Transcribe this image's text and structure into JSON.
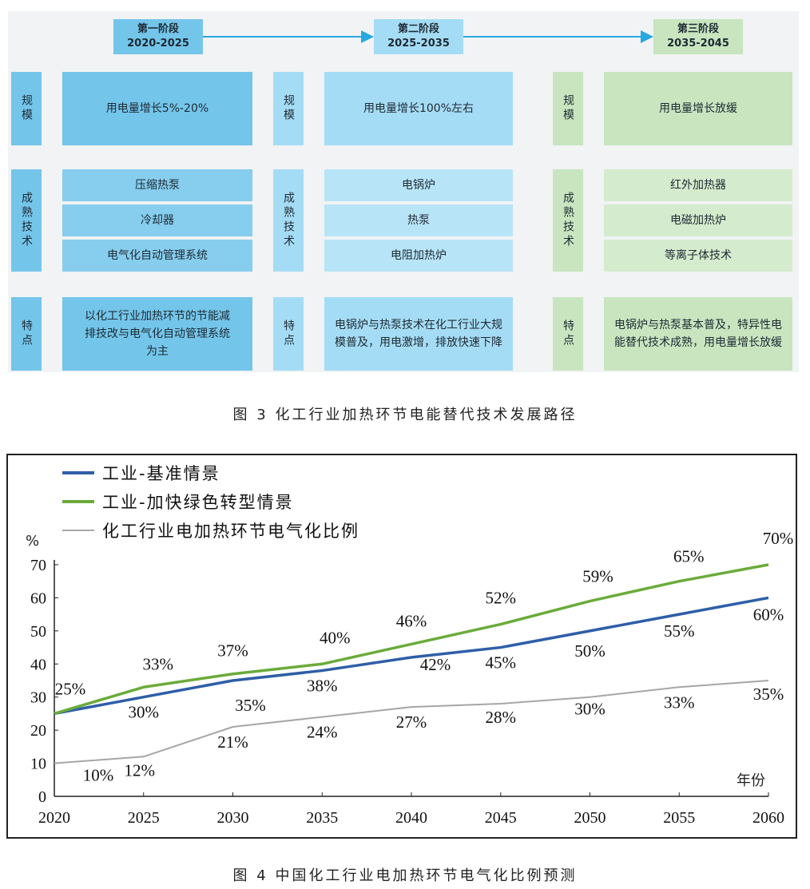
{
  "figure3": {
    "caption": "图 3  化工行业加热环节电能替代技术发展路径",
    "stages": [
      {
        "name": "第一阶段",
        "years": "2020-2025",
        "scale_label": "规模",
        "scale": "用电量增长5%-20%",
        "tech_label": "成熟技术",
        "techs": [
          "压缩热泵",
          "冷却器",
          "电气化自动管理系统"
        ],
        "feature_label": "特点",
        "feature": "以化工行业加热环节的节能减排技改与电气化自动管理系统为主",
        "color": "#74c5ea"
      },
      {
        "name": "第二阶段",
        "years": "2025-2035",
        "scale_label": "规模",
        "scale": "用电量增长100%左右",
        "tech_label": "成熟技术",
        "techs": [
          "电锅炉",
          "热泵",
          "电阻加热炉"
        ],
        "feature_label": "特点",
        "feature": "电锅炉与热泵技术在化工行业大规模普及，用电激增，排放快速下降",
        "color": "#a5dcf5"
      },
      {
        "name": "第三阶段",
        "years": "2035-2045",
        "scale_label": "规模",
        "scale": "用电量增长放缓",
        "tech_label": "成熟技术",
        "techs": [
          "红外加热器",
          "电磁加热炉",
          "等离子体技术"
        ],
        "feature_label": "特点",
        "feature": "电锅炉与热泵基本普及，特异性电能替代技术成熟，用电量增长放缓",
        "color": "#c8e5bf"
      }
    ],
    "arrow_color": "#29a8e0"
  },
  "figure4": {
    "caption": "图 4  中国化工行业电加热环节电气化比例预测"
  },
  "chart_data": {
    "type": "line",
    "x": [
      2020,
      2025,
      2030,
      2035,
      2040,
      2045,
      2050,
      2055,
      2060
    ],
    "ylabel": "%",
    "xlabel": "年份",
    "ylim": [
      0,
      70
    ],
    "yticks": [
      0,
      10,
      20,
      30,
      40,
      50,
      60,
      70
    ],
    "grid": false,
    "legend_position": "top-left",
    "series": [
      {
        "name": "工业-基准情景",
        "color": "#2e5ea8",
        "values": [
          25,
          30,
          35,
          38,
          42,
          45,
          50,
          55,
          60
        ],
        "labels": [
          "",
          "30%",
          "",
          "38%",
          "42%",
          "45%",
          "50%",
          "55%",
          "60%"
        ]
      },
      {
        "name": "工业-加快绿色转型情景",
        "color": "#6aab3a",
        "values": [
          25,
          33,
          37,
          40,
          46,
          52,
          59,
          65,
          70
        ],
        "labels": [
          "25%",
          "33%",
          "37%",
          "40%",
          "46%",
          "52%",
          "59%",
          "65%",
          "70%"
        ]
      },
      {
        "name": "化工行业电加热环节电气化比例",
        "color": "#a6a6a6",
        "values": [
          10,
          12,
          21,
          24,
          27,
          28,
          30,
          33,
          35
        ],
        "labels": [
          "10%",
          "12%",
          "21%",
          "24%",
          "27%",
          "28%",
          "30%",
          "33%",
          "35%"
        ]
      }
    ],
    "extra_labels": [
      "35%"
    ]
  }
}
